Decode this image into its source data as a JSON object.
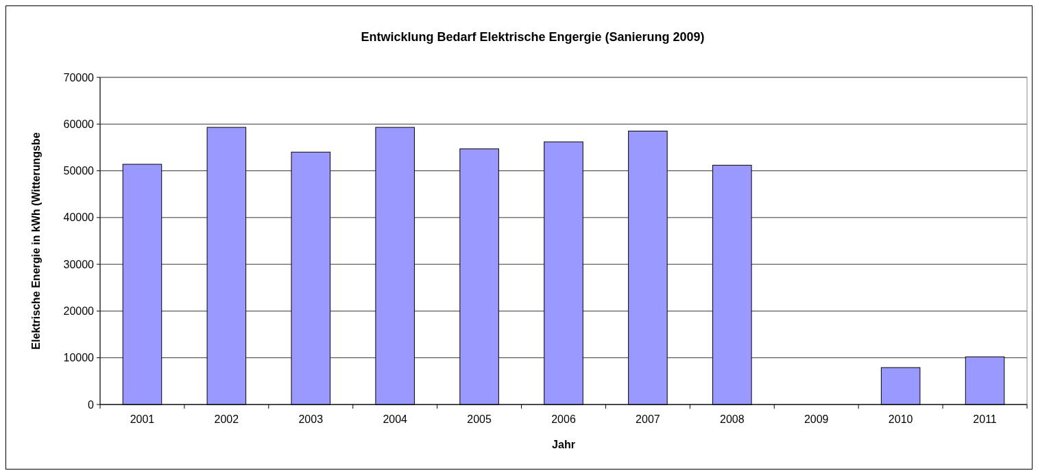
{
  "chart_data": {
    "type": "bar",
    "title": "Entwicklung Bedarf Elektrische Engergie (Sanierung 2009)",
    "xlabel": "Jahr",
    "ylabel": "Elektrische Energie in kWh (Witterungsbe",
    "categories": [
      "2001",
      "2002",
      "2003",
      "2004",
      "2005",
      "2006",
      "2007",
      "2008",
      "2009",
      "2010",
      "2011"
    ],
    "values": [
      51400,
      59300,
      54000,
      59300,
      54700,
      56200,
      58500,
      51200,
      null,
      7900,
      10200
    ],
    "color": "#9999ff",
    "ylim": [
      0,
      70000
    ],
    "yticks": [
      0,
      10000,
      20000,
      30000,
      40000,
      50000,
      60000,
      70000
    ],
    "grid": "y"
  }
}
